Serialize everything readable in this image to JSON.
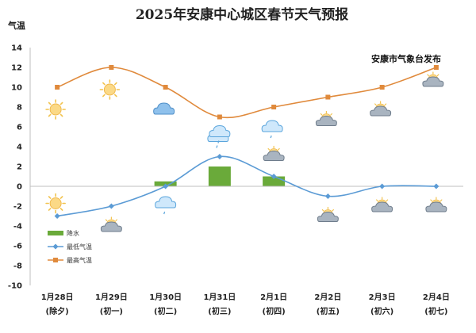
{
  "chart_data": {
    "type": "line",
    "title": "2025年安康中心城区春节天气预报",
    "ylabel": "气温",
    "annotation": "安康市气象台发布",
    "ylim": [
      -10,
      14
    ],
    "yticks": [
      -10,
      -8,
      -6,
      -4,
      -2,
      0,
      2,
      4,
      6,
      8,
      10,
      12,
      14
    ],
    "grid": false,
    "legend_position": "bottom-left",
    "categories": [
      [
        "1月28日",
        "(除夕)"
      ],
      [
        "1月29日",
        "(初一)"
      ],
      [
        "1月30日",
        "(初二)"
      ],
      [
        "1月31日",
        "(初三)"
      ],
      [
        "2月1日",
        "(初四)"
      ],
      [
        "2月2日",
        "(初五)"
      ],
      [
        "2月3日",
        "(初六)"
      ],
      [
        "2月4日",
        "(初七)"
      ]
    ],
    "series": [
      {
        "name": "降水",
        "type": "bar",
        "color": "#6aaa3a",
        "values": [
          0,
          0,
          0.5,
          2,
          1,
          0,
          0,
          0
        ]
      },
      {
        "name": "最低气温",
        "type": "line",
        "color": "#5b9bd5",
        "marker": "diamond",
        "values": [
          -3,
          -2,
          0,
          3,
          1,
          -1,
          0,
          0
        ]
      },
      {
        "name": "最高气温",
        "type": "line",
        "color": "#e08a3c",
        "marker": "square",
        "values": [
          10,
          12,
          10,
          7,
          8,
          9,
          10,
          12
        ]
      }
    ],
    "weather_icons": {
      "high": [
        "sun",
        "sun",
        "cloud",
        "cloud-rain",
        "cloud-rain",
        "partly-cloudy",
        "partly-cloudy",
        "partly-cloudy"
      ],
      "low": [
        "sun",
        "partly-cloudy",
        "cloud-rain",
        "cloud-rain",
        "partly-cloudy",
        "partly-cloudy",
        "partly-cloudy",
        "partly-cloudy"
      ]
    }
  }
}
